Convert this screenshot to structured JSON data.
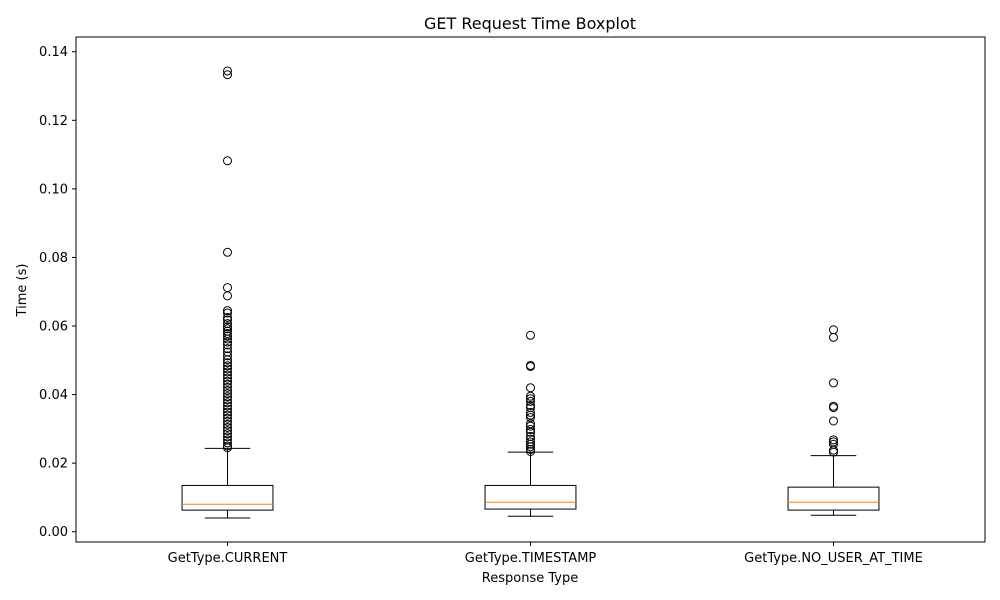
{
  "chart_data": {
    "type": "boxplot",
    "title": "GET Request Time Boxplot",
    "xlabel": "Response Type",
    "ylabel": "Time (s)",
    "ylim": [
      -0.003,
      0.1443
    ],
    "yticks": [
      0.0,
      0.02,
      0.04,
      0.06,
      0.08,
      0.1,
      0.12,
      0.14
    ],
    "ytick_labels": [
      "0.00",
      "0.02",
      "0.04",
      "0.06",
      "0.08",
      "0.10",
      "0.12",
      "0.14"
    ],
    "grid": false,
    "categories": [
      "GetType.CURRENT",
      "GetType.TIMESTAMP",
      "GetType.NO_USER_AT_TIME"
    ],
    "boxes": [
      {
        "whisker_low": 0.004,
        "q1": 0.0063,
        "median": 0.008,
        "q3": 0.0135,
        "whisker_high": 0.0243,
        "outliers": [
          0.1344,
          0.1333,
          0.1082,
          0.0815,
          0.0712,
          0.0688,
          0.0645,
          0.0638,
          0.0625,
          0.0618,
          0.0607,
          0.0598,
          0.0592,
          0.0585,
          0.0578,
          0.0571,
          0.0562,
          0.0553,
          0.0545,
          0.0534,
          0.0524,
          0.0513,
          0.0502,
          0.0493,
          0.0484,
          0.0475,
          0.0466,
          0.0457,
          0.0448,
          0.0439,
          0.043,
          0.0421,
          0.0412,
          0.0403,
          0.0394,
          0.0385,
          0.0376,
          0.0367,
          0.0358,
          0.0349,
          0.034,
          0.0331,
          0.0322,
          0.0313,
          0.0304,
          0.0295,
          0.0286,
          0.0277,
          0.0268,
          0.0259,
          0.025,
          0.0245
        ]
      },
      {
        "whisker_low": 0.0045,
        "q1": 0.0066,
        "median": 0.0086,
        "q3": 0.0135,
        "whisker_high": 0.0232,
        "outliers": [
          0.0573,
          0.0485,
          0.0482,
          0.042,
          0.0395,
          0.0388,
          0.038,
          0.0368,
          0.0362,
          0.0348,
          0.034,
          0.0333,
          0.0315,
          0.0308,
          0.0298,
          0.029,
          0.0278,
          0.027,
          0.0262,
          0.0255,
          0.0248,
          0.024,
          0.0234
        ]
      },
      {
        "whisker_low": 0.0048,
        "q1": 0.0063,
        "median": 0.0086,
        "q3": 0.013,
        "whisker_high": 0.0222,
        "outliers": [
          0.0589,
          0.0567,
          0.0434,
          0.0366,
          0.0362,
          0.0323,
          0.0268,
          0.0262,
          0.0255,
          0.0238,
          0.0232
        ]
      }
    ],
    "colors": {
      "box": "#000000",
      "median": "#ff7f0e",
      "outlier": "#000000"
    }
  }
}
